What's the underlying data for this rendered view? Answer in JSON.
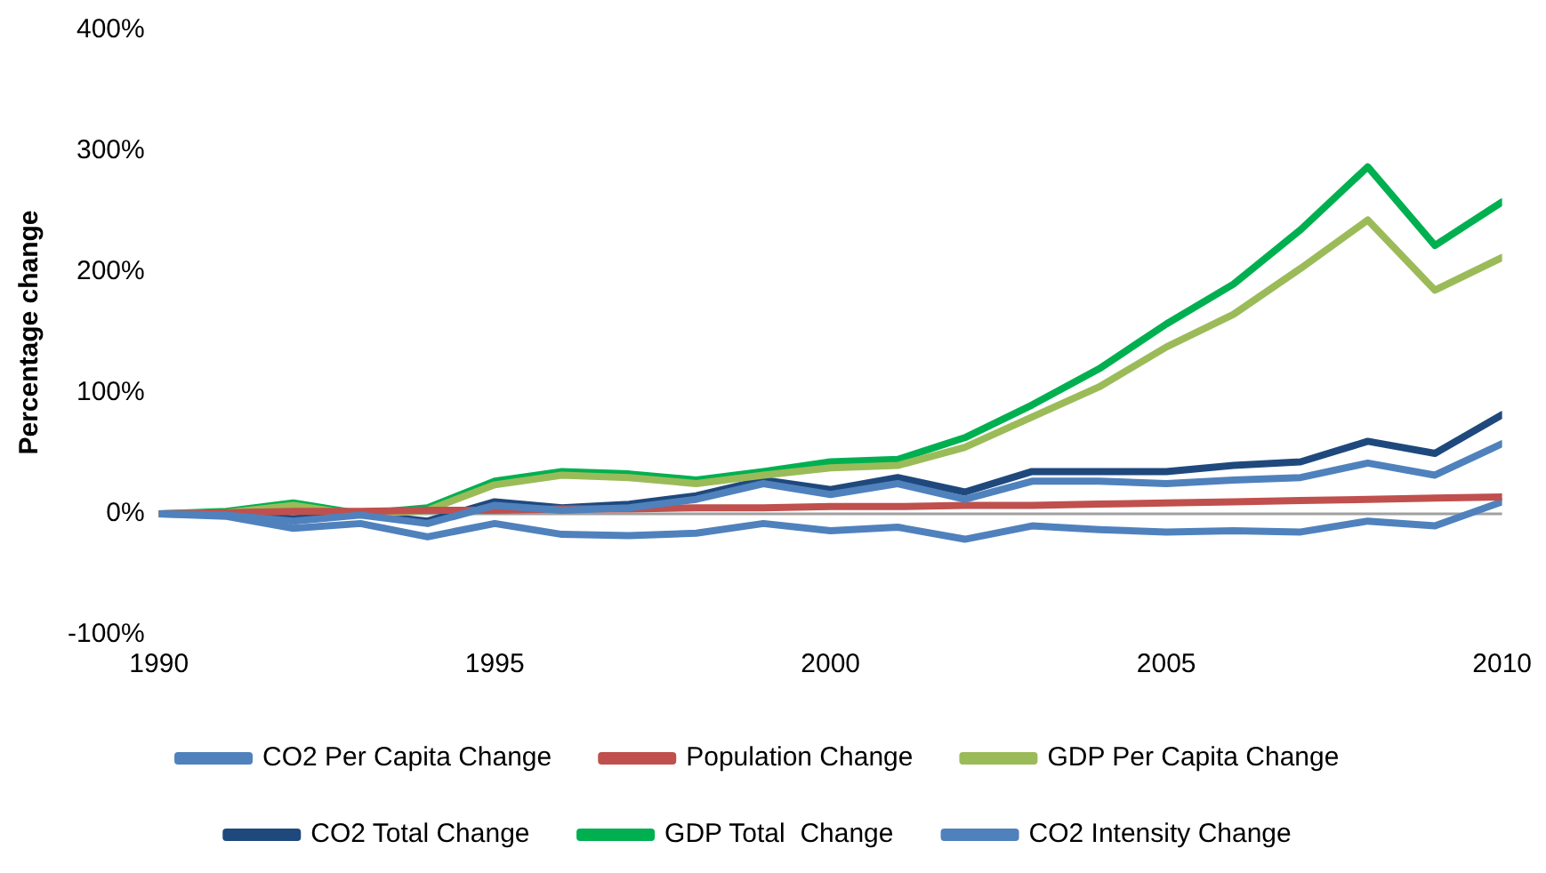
{
  "chart_data": {
    "type": "line",
    "ylabel": "Percentage change",
    "x": [
      1990,
      1991,
      1992,
      1993,
      1994,
      1995,
      1996,
      1997,
      1998,
      1999,
      2000,
      2001,
      2002,
      2003,
      2004,
      2005,
      2006,
      2007,
      2008,
      2009,
      2010
    ],
    "xlim": [
      1990,
      2010
    ],
    "xticks": [
      1990,
      1995,
      2000,
      2005,
      2010
    ],
    "ylim": [
      -100,
      400
    ],
    "yticks": [
      {
        "value": -100,
        "label": "-100%"
      },
      {
        "value": 0,
        "label": "0%"
      },
      {
        "value": 100,
        "label": "100%"
      },
      {
        "value": 200,
        "label": "200%"
      },
      {
        "value": 300,
        "label": "300%"
      },
      {
        "value": 400,
        "label": "400%"
      }
    ],
    "grid": false,
    "ref_lines": [
      {
        "axis": "y",
        "value": 0,
        "color": "#a0a0a0"
      }
    ],
    "legend": "bottom",
    "marker": "none",
    "line_style": "solid",
    "series": [
      {
        "name": "CO2 Per Capita Change",
        "color": "#4f81bd",
        "values": [
          0,
          -1,
          -6,
          -1,
          -8,
          7,
          3,
          5,
          12,
          25,
          16,
          25,
          12,
          27,
          27,
          25,
          28,
          30,
          42,
          32,
          58
        ]
      },
      {
        "name": "Population Change",
        "color": "#c0504d",
        "values": [
          0,
          1,
          2,
          2,
          3,
          3,
          4,
          4,
          5,
          5,
          6,
          6,
          7,
          7,
          8,
          9,
          10,
          11,
          12,
          13,
          14
        ]
      },
      {
        "name": "GDP Per Capita Change",
        "color": "#9bbb59",
        "values": [
          0,
          1,
          7,
          -1,
          3,
          24,
          32,
          30,
          25,
          32,
          38,
          40,
          55,
          80,
          105,
          138,
          165,
          203,
          243,
          185,
          212
        ]
      },
      {
        "name": "CO2 Total Change",
        "color": "#1f497d",
        "values": [
          0,
          0,
          -4,
          0,
          -6,
          10,
          5,
          8,
          15,
          28,
          20,
          30,
          18,
          35,
          35,
          35,
          40,
          43,
          60,
          50,
          82
        ]
      },
      {
        "name": "GDP Total  Change",
        "color": "#00b050",
        "values": [
          0,
          2,
          9,
          0,
          5,
          27,
          35,
          33,
          28,
          35,
          43,
          45,
          63,
          90,
          120,
          157,
          190,
          235,
          287,
          222,
          258
        ]
      },
      {
        "name": "CO2 Intensity Change",
        "color": "#4f81bd",
        "values": [
          0,
          -2,
          -12,
          -8,
          -19,
          -8,
          -17,
          -18,
          -16,
          -8,
          -14,
          -11,
          -21,
          -10,
          -13,
          -15,
          -14,
          -15,
          -6,
          -10,
          10
        ]
      }
    ]
  }
}
